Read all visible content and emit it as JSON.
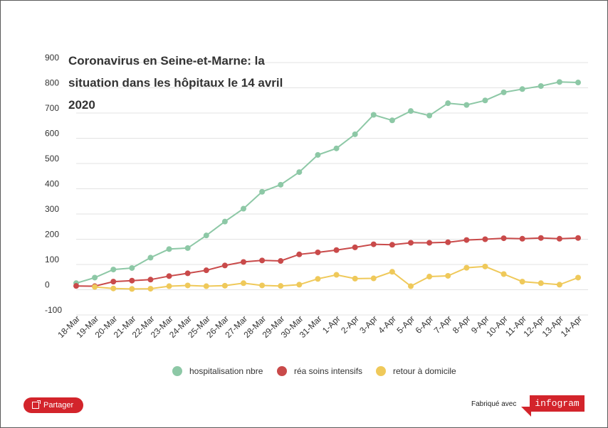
{
  "chart_data": {
    "type": "line",
    "title": "Coronavirus en Seine-et-Marne: la situation dans les hôpitaux le 14 avril 2020",
    "x": [
      "18-Mar",
      "19-Mar",
      "20-Mar",
      "21-Mar",
      "22-Mar",
      "23-Mar",
      "24-Mar",
      "25-Mar",
      "26-Mar",
      "27-Mar",
      "28-Mar",
      "29-Mar",
      "30-Mar",
      "31-Mar",
      "1-Apr",
      "2-Apr",
      "3-Apr",
      "4-Apr",
      "5-Apr",
      "6-Apr",
      "7-Apr",
      "8-Apr",
      "9-Apr",
      "10-Apr",
      "11-Apr",
      "12-Apr",
      "13-Apr",
      "14-Apr"
    ],
    "yticks": [
      "900",
      "800",
      "700",
      "600",
      "500",
      "400",
      "300",
      "200",
      "100",
      "0",
      "-100"
    ],
    "ylim": [
      -100,
      900
    ],
    "grid": true,
    "legend_position": "bottom",
    "series": [
      {
        "name": "hospitalisation nbre",
        "color": "#8dc8a6",
        "values": [
          26,
          48,
          80,
          86,
          127,
          161,
          165,
          215,
          270,
          321,
          388,
          416,
          466,
          534,
          560,
          616,
          693,
          671,
          708,
          690,
          739,
          732,
          750,
          782,
          795,
          807,
          823,
          821
        ]
      },
      {
        "name": "réa soins intensifs",
        "color": "#c94a4a",
        "values": [
          15,
          14,
          32,
          36,
          40,
          54,
          65,
          77,
          96,
          110,
          116,
          114,
          140,
          148,
          157,
          168,
          180,
          178,
          186,
          186,
          188,
          197,
          200,
          204,
          202,
          205,
          202,
          205
        ]
      },
      {
        "name": "retour à domicile",
        "color": "#efc95a",
        "values": [
          null,
          11,
          5,
          3,
          4,
          14,
          17,
          14,
          16,
          26,
          17,
          15,
          20,
          43,
          59,
          44,
          45,
          71,
          14,
          52,
          55,
          87,
          92,
          62,
          32,
          26,
          20,
          48
        ]
      }
    ]
  },
  "footer": {
    "share_label": "Partager",
    "made_with": "Fabriqué avec",
    "logo_text": "infogram"
  }
}
